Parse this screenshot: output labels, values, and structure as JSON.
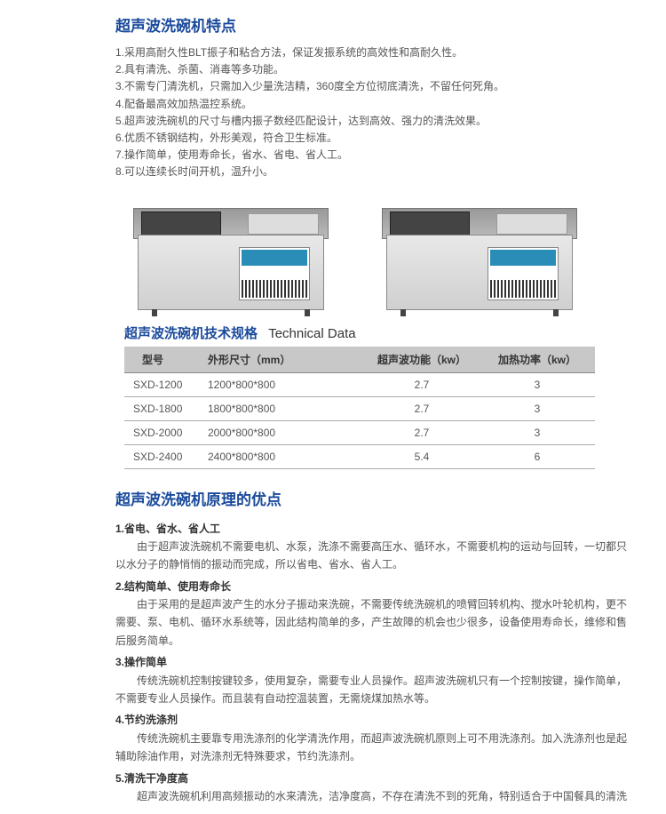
{
  "colors": {
    "heading": "#1a4a9c",
    "body_text": "#555",
    "sub_heading": "#333",
    "table_header_bg": "#c8c8c8",
    "border": "#aaa",
    "background": "#ffffff"
  },
  "typography": {
    "heading_fontsize": 17,
    "body_fontsize": 12,
    "tech_title_fontsize": 15
  },
  "features": {
    "title": "超声波洗碗机特点",
    "items": [
      "1.采用高耐久性BLT振子和粘合方法，保证发振系统的高效性和高耐久性。",
      "2.具有清洗、杀菌、消毒等多功能。",
      "3.不需专门清洗机，只需加入少量洗洁精，360度全方位彻底清洗，不留任何死角。",
      "4.配备最高效加热温控系统。",
      "5.超声波洗碗机的尺寸与槽内振子数经匹配设计，达到高效、强力的清洗效果。",
      "6.优质不锈钢结构，外形美观，符合卫生标准。",
      "7.操作简单，使用寿命长，省水、省电、省人工。",
      "8.可以连续长时间开机，温升小。"
    ]
  },
  "tech_data": {
    "title_cn": "超声波洗碗机技术规格",
    "title_en": "Technical Data",
    "columns": [
      "型号",
      "外形尺寸（mm）",
      "超声波功能（kw）",
      "加热功率（kw）"
    ],
    "rows": [
      [
        "SXD-1200",
        "1200*800*800",
        "2.7",
        "3"
      ],
      [
        "SXD-1800",
        "1800*800*800",
        "2.7",
        "3"
      ],
      [
        "SXD-2000",
        "2000*800*800",
        "2.7",
        "3"
      ],
      [
        "SXD-2400",
        "2400*800*800",
        "5.4",
        "6"
      ]
    ]
  },
  "advantages": {
    "title": "超声波洗碗机原理的优点",
    "sections": [
      {
        "subtitle": "1.省电、省水、省人工",
        "text": "由于超声波洗碗机不需要电机、水泵，洗涤不需要高压水、循环水，不需要机构的运动与回转，一切都只以水分子的静悄悄的振动而完成，所以省电、省水、省人工。"
      },
      {
        "subtitle": "2.结构简单、使用寿命长",
        "text": "由于采用的是超声波产生的水分子振动来洗碗，不需要传统洗碗机的喷臂回转机构、搅水叶轮机构，更不需要、泵、电机、循环水系统等，因此结构简单的多，产生故障的机会也少很多，设备使用寿命长，维修和售后服务简单。"
      },
      {
        "subtitle": "3.操作简单",
        "text": "传统洗碗机控制按键较多，使用复杂，需要专业人员操作。超声波洗碗机只有一个控制按键，操作简单，不需要专业人员操作。而且装有自动控温装置，无需烧煤加热水等。"
      },
      {
        "subtitle": "4.节约洗涤剂",
        "text": "传统洗碗机主要靠专用洗涤剂的化学清洗作用，而超声波洗碗机原则上可不用洗涤剂。加入洗涤剂也是起辅助除油作用，对洗涤剂无特殊要求，节约洗涤剂。"
      },
      {
        "subtitle": "5.清洗干净度高",
        "text": "超声波洗碗机利用高频振动的水来清洗，洁净度高，不存在清洗不到的死角，特别适合于中国餐具的清洗"
      }
    ]
  }
}
